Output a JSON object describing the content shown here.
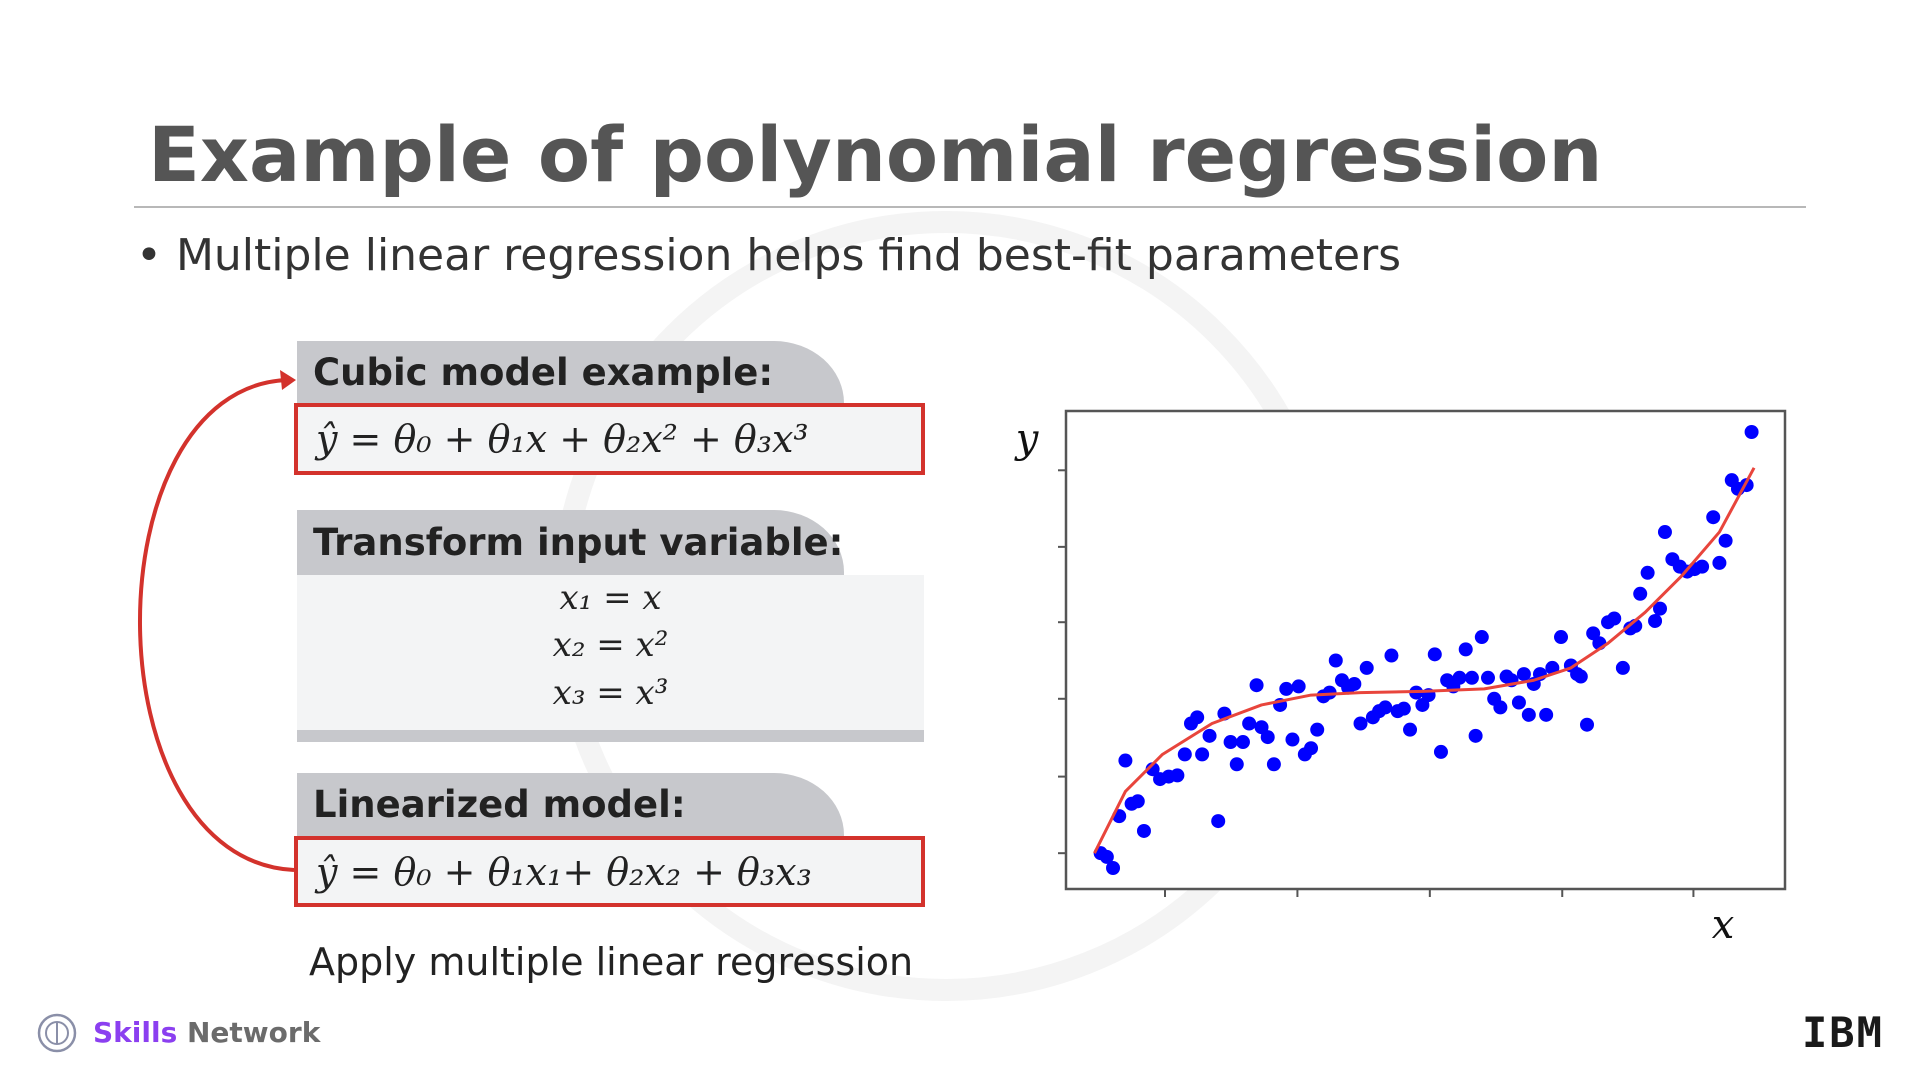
{
  "title": "Example of polynomial regression",
  "bullet": "Multiple linear regression helps find best-fit parameters",
  "panels": [
    {
      "header": "Cubic model example:",
      "equation": "ŷ = θ₀ + θ₁x + θ₂x² +  θ₃x³"
    },
    {
      "header": "Transform input variable:",
      "equations": [
        "x₁ = x",
        "x₂ = x²",
        "x₃ = x³"
      ]
    },
    {
      "header": "Linearized model:",
      "equation": "ŷ = θ₀ + θ₁x₁+ θ₂x₂ + θ₃x₃"
    }
  ],
  "caption": "Apply multiple linear regression",
  "footer": {
    "brand_bold": "Skills",
    "brand_rest": "Network",
    "logo": "IBM"
  },
  "chart_data": {
    "type": "scatter",
    "x_label": "x",
    "y_label": "y",
    "xlim": [
      0,
      581
    ],
    "ylim": [
      0,
      387
    ],
    "xticks": [
      80,
      187,
      294,
      401,
      507
    ],
    "yticks": [
      29,
      91,
      154,
      216,
      277,
      339
    ],
    "series": [
      {
        "type": "scatter",
        "color": "#0000ff",
        "x": [
          28,
          33,
          38,
          43,
          48,
          53,
          58,
          63,
          70,
          76,
          83,
          90,
          96,
          101,
          106,
          110,
          116,
          123,
          128,
          133,
          138,
          143,
          148,
          154,
          158,
          163,
          168,
          173,
          178,
          183,
          188,
          193,
          198,
          203,
          208,
          213,
          218,
          223,
          228,
          233,
          238,
          243,
          248,
          253,
          258,
          263,
          268,
          273,
          278,
          283,
          288,
          293,
          298,
          303,
          308,
          313,
          318,
          323,
          328,
          331,
          336,
          341,
          346,
          351,
          356,
          360,
          366,
          370,
          374,
          378,
          383,
          388,
          393,
          400,
          408,
          413,
          416,
          421,
          426,
          431,
          438,
          443,
          450,
          456,
          460,
          464,
          470,
          476,
          480,
          484,
          490,
          496,
          502,
          508,
          514,
          523,
          528,
          533,
          538,
          543,
          550,
          554
        ],
        "values": [
          29,
          26,
          17,
          59,
          104,
          69,
          71,
          47,
          97,
          89,
          91,
          92,
          109,
          134,
          139,
          109,
          124,
          55,
          142,
          119,
          101,
          119,
          134,
          165,
          131,
          123,
          101,
          149,
          162,
          121,
          164,
          109,
          114,
          129,
          156,
          159,
          185,
          169,
          163,
          166,
          134,
          179,
          139,
          144,
          147,
          189,
          144,
          146,
          129,
          159,
          149,
          157,
          190,
          111,
          169,
          164,
          171,
          194,
          171,
          124,
          204,
          171,
          154,
          147,
          172,
          169,
          151,
          174,
          141,
          166,
          174,
          141,
          179,
          204,
          181,
          174,
          172,
          133,
          207,
          199,
          216,
          219,
          179,
          211,
          213,
          239,
          256,
          217,
          227,
          289,
          267,
          261,
          257,
          259,
          261,
          301,
          264,
          282,
          331,
          324,
          327,
          370
        ]
      },
      {
        "type": "line",
        "color": "#e8453c",
        "x": [
          23,
          48,
          78,
          118,
          158,
          198,
          238,
          288,
          338,
          378,
          408,
          438,
          468,
          498,
          528,
          556
        ],
        "values": [
          29,
          79,
          109,
          134,
          149,
          157,
          159,
          160,
          162,
          169,
          179,
          199,
          224,
          254,
          289,
          341
        ]
      }
    ]
  }
}
